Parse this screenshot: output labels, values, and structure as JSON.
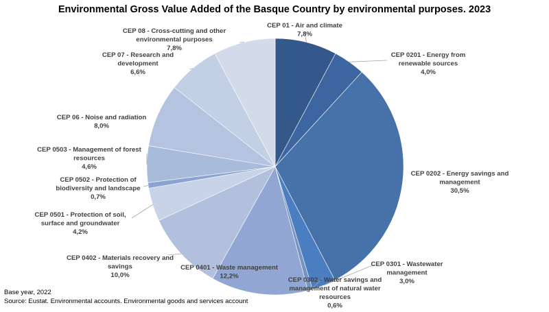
{
  "chart_data": {
    "type": "pie",
    "title": "Environmental Gross Value Added of the Basque Country by environmental purposes. 2023",
    "slices": [
      {
        "label": "CEP 01 - Air and climate",
        "value": 7.8,
        "display": "7,8%",
        "color": "#345889"
      },
      {
        "label": "CEP 0201 - Energy from renewable sources",
        "value": 4.0,
        "display": "4,0%",
        "color": "#3d66a0"
      },
      {
        "label": "CEP 0202 - Energy savings and management",
        "value": 30.5,
        "display": "30,5%",
        "color": "#4672a9"
      },
      {
        "label": "CEP 0301 - Wastewater management",
        "value": 3.0,
        "display": "3,0%",
        "color": "#4a7ec0"
      },
      {
        "label": "CEP 0302 - Water savings and management of natural water resources",
        "value": 0.6,
        "display": "0,6%",
        "color": "#7894c2"
      },
      {
        "label": "CEP 0401 - Waste management",
        "value": 12.2,
        "display": "12,2%",
        "color": "#91a6d2"
      },
      {
        "label": "CEP 0402 - Materials recovery and savings",
        "value": 10.0,
        "display": "10,0%",
        "color": "#b2c0dd"
      },
      {
        "label": "CEP 0501 - Protection of soil, surface and groundwater",
        "value": 4.2,
        "display": "4,2%",
        "color": "#c9d3e7"
      },
      {
        "label": "CEP 0502 - Protection of biodiversity and landscape",
        "value": 0.7,
        "display": "0,7%",
        "color": "#8aa3d2"
      },
      {
        "label": "CEP 0503 - Management of forest resources",
        "value": 4.6,
        "display": "4,6%",
        "color": "#a9bbdb"
      },
      {
        "label": "CEP 06 - Noise and radiation",
        "value": 8.0,
        "display": "8,0%",
        "color": "#b3c3e0"
      },
      {
        "label": "CEP 07 - Research and development",
        "value": 6.6,
        "display": "6,6%",
        "color": "#c3cfe4"
      },
      {
        "label": "CEP 08 - Cross-cutting and other environmental purposes",
        "value": 7.8,
        "display": "7,8%",
        "color": "#d3dbeb"
      }
    ]
  },
  "footnote": {
    "base_year": "Base year, 2022",
    "source": "Source: Eustat. Environmental accounts. Environmental goods and services account"
  }
}
